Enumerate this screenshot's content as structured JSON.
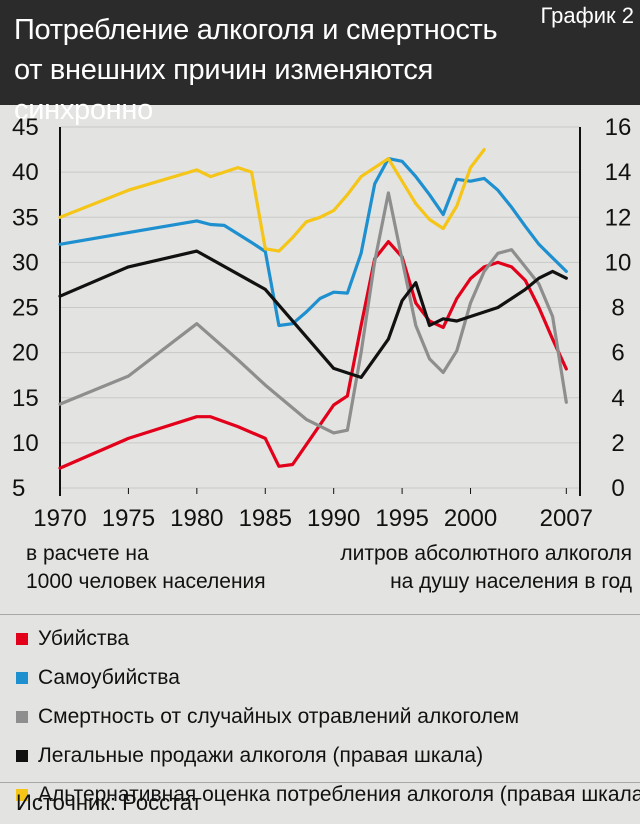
{
  "header": {
    "title_line1": "Потребление алкоголя и смертность",
    "title_line2": "от внешних причин изменяются синхронно",
    "tag": "График 2"
  },
  "notes": {
    "left_line1": "в расчете на",
    "left_line2": "1000 человек населения",
    "right_line1": "литров абсолютного алкоголя",
    "right_line2": "на душу населения в год"
  },
  "legend": [
    {
      "label": "Убийства",
      "color": "#e2001a"
    },
    {
      "label": "Самоубийства",
      "color": "#1e90d0"
    },
    {
      "label": "Смертность от случайных отравлений алкоголем",
      "color": "#8e8e8e"
    },
    {
      "label": "Легальные продажи алкоголя (правая шкала)",
      "color": "#111111"
    },
    {
      "label": "Альтернативная оценка потребления алкоголя (правая шкала)",
      "color": "#f5c518"
    }
  ],
  "source": "Источник: Росстат",
  "chart_data": {
    "type": "line",
    "title": "Потребление алкоголя и смертность от внешних причин изменяются синхронно",
    "x_ticks": [
      "1970",
      "1975",
      "1980",
      "1985",
      "1990",
      "1995",
      "2000",
      "2007"
    ],
    "xlim": [
      1970,
      2008
    ],
    "y_left": {
      "ticks": [
        "5",
        "10",
        "15",
        "20",
        "25",
        "30",
        "35",
        "40",
        "45"
      ],
      "lim": [
        5,
        45
      ],
      "label": "в расчете на 1000 человек населения"
    },
    "y_right": {
      "ticks": [
        "0",
        "2",
        "4",
        "6",
        "8",
        "10",
        "12",
        "14",
        "16"
      ],
      "lim": [
        0,
        16
      ],
      "label": "литров абсолютного алкоголя на душу населения в год"
    },
    "series": [
      {
        "name": "Убийства",
        "axis": "left",
        "color": "#e2001a",
        "x": [
          1970,
          1975,
          1980,
          1981,
          1983,
          1985,
          1986,
          1987,
          1988,
          1990,
          1991,
          1992,
          1993,
          1994,
          1995,
          1996,
          1997,
          1998,
          1999,
          2000,
          2001,
          2002,
          2003,
          2004,
          2005,
          2006,
          2007
        ],
        "y": [
          7.2,
          10.5,
          12.9,
          12.9,
          11.8,
          10.5,
          7.4,
          7.6,
          9.8,
          14.2,
          15.2,
          23,
          30.4,
          32.3,
          30.6,
          25.5,
          23.5,
          22.8,
          26,
          28.2,
          29.5,
          30,
          29.5,
          28,
          25,
          21.5,
          18.2
        ]
      },
      {
        "name": "Самоубийства",
        "axis": "left",
        "color": "#1e90d0",
        "x": [
          1970,
          1975,
          1980,
          1981,
          1982,
          1984,
          1985,
          1986,
          1987,
          1988,
          1989,
          1990,
          1991,
          1992,
          1993,
          1994,
          1995,
          1996,
          1997,
          1998,
          1999,
          2000,
          2001,
          2002,
          2003,
          2004,
          2005,
          2006,
          2007
        ],
        "y": [
          32,
          33.3,
          34.6,
          34.2,
          34.1,
          32.2,
          31.2,
          23,
          23.2,
          24.5,
          26,
          26.7,
          26.6,
          31,
          38.7,
          41.5,
          41.2,
          39.5,
          37.5,
          35.3,
          39.2,
          39,
          39.3,
          38,
          36.1,
          34,
          32,
          30.5,
          29
        ]
      },
      {
        "name": "Смертность от случайных отравлений алкоголем",
        "axis": "left",
        "color": "#8e8e8e",
        "x": [
          1970,
          1975,
          1980,
          1983,
          1985,
          1988,
          1990,
          1991,
          1992,
          1993,
          1994,
          1995,
          1996,
          1997,
          1998,
          1999,
          2000,
          2001,
          2002,
          2003,
          2004,
          2005,
          2006,
          2007
        ],
        "y": [
          14.3,
          17.4,
          23.2,
          19.2,
          16.4,
          12.6,
          11.1,
          11.4,
          20,
          30.1,
          37.7,
          30.3,
          23,
          19.3,
          17.8,
          20.2,
          25.5,
          29,
          31,
          31.4,
          29.5,
          27.6,
          24,
          14.5
        ]
      },
      {
        "name": "Легальные продажи алкоголя (правая шкала)",
        "axis": "right",
        "color": "#111111",
        "x": [
          1970,
          1975,
          1980,
          1985,
          1990,
          1991,
          1992,
          1994,
          1995,
          1996,
          1997,
          1998,
          1999,
          2000,
          2001,
          2002,
          2003,
          2004,
          2005,
          2006,
          2007
        ],
        "y": [
          8.5,
          9.8,
          10.5,
          8.8,
          5.3,
          5.1,
          4.9,
          6.6,
          8.3,
          9.1,
          7.2,
          7.5,
          7.4,
          7.6,
          7.8,
          8.0,
          8.4,
          8.8,
          9.3,
          9.6,
          9.3
        ]
      },
      {
        "name": "Альтернативная оценка потребления алкоголя (правая шкала)",
        "axis": "right",
        "color": "#f5c518",
        "x": [
          1970,
          1975,
          1980,
          1981,
          1982,
          1983,
          1984,
          1985,
          1986,
          1987,
          1988,
          1989,
          1990,
          1991,
          1992,
          1993,
          1994,
          1995,
          1996,
          1997,
          1998,
          1999,
          2000,
          2001
        ],
        "y": [
          12,
          13.2,
          14.1,
          13.8,
          14,
          14.2,
          14,
          10.6,
          10.5,
          11.1,
          11.8,
          12,
          12.3,
          13,
          13.8,
          14.2,
          14.6,
          13.6,
          12.6,
          11.9,
          11.5,
          12.5,
          14.2,
          15
        ]
      }
    ]
  }
}
